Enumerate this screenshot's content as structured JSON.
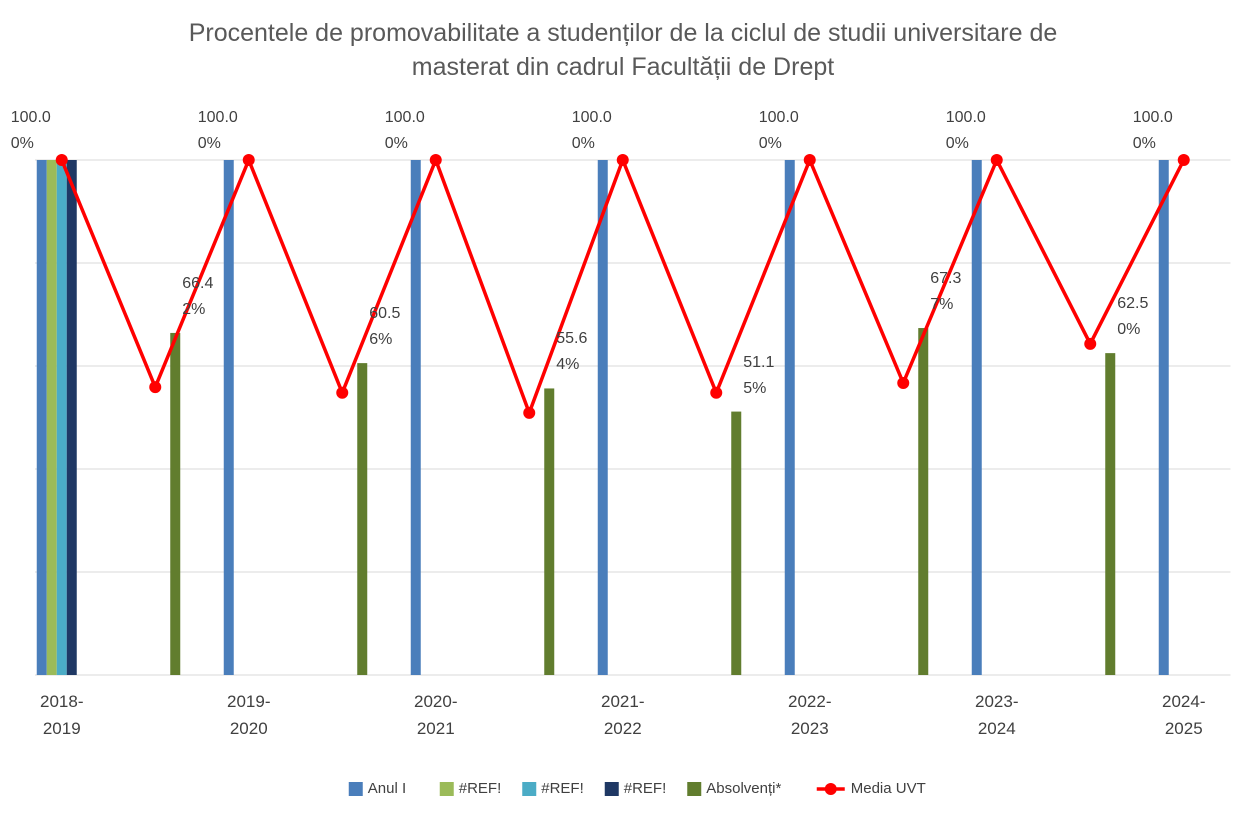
{
  "chart_data": {
    "type": "bar",
    "title": "Procentele de promovabilitate a studenților de la ciclul de studii universitare de masterat din cadrul Facultății de Drept",
    "categories": [
      "2018-2019",
      null,
      "2019-2020",
      null,
      "2020-2021",
      null,
      "2021-2022",
      null,
      "2022-2023",
      null,
      "2023-2024",
      null,
      "2024-2025"
    ],
    "series": [
      {
        "name": "Anul I",
        "color": "#4a7ebb",
        "type": "bar",
        "values": [
          100,
          null,
          100,
          null,
          100,
          null,
          100,
          null,
          100,
          null,
          100,
          null,
          100
        ],
        "value_labels": [
          "100.00%",
          null,
          "100.00%",
          null,
          "100.00%",
          null,
          "100.00%",
          null,
          "100.00%",
          null,
          "100.00%",
          null,
          "100.00%"
        ]
      },
      {
        "name": "#REF!",
        "color": "#9bbb59",
        "type": "bar",
        "values": [
          100,
          null,
          null,
          null,
          null,
          null,
          null,
          null,
          null,
          null,
          null,
          null,
          null
        ]
      },
      {
        "name": "#REF!",
        "color": "#4bacc6",
        "type": "bar",
        "values": [
          100,
          null,
          null,
          null,
          null,
          null,
          null,
          null,
          null,
          null,
          null,
          null,
          null
        ]
      },
      {
        "name": "#REF!",
        "color": "#1f3864",
        "type": "bar",
        "values": [
          100,
          null,
          null,
          null,
          null,
          null,
          null,
          null,
          null,
          null,
          null,
          null,
          null
        ]
      },
      {
        "name": "Absolvenți*",
        "color": "#617d2e",
        "type": "bar",
        "values": [
          null,
          66.42,
          null,
          60.56,
          null,
          55.64,
          null,
          51.15,
          null,
          67.37,
          null,
          62.5,
          null
        ],
        "value_labels": [
          null,
          "66.42%",
          null,
          "60.56%",
          null,
          "55.64%",
          null,
          "51.15%",
          null,
          "67.37%",
          null,
          "62.50%",
          null
        ]
      },
      {
        "name": "Media UVT",
        "color": "#ff0000",
        "type": "line",
        "values": [
          100,
          55.9,
          100,
          54.8,
          100,
          50.9,
          100,
          54.8,
          100,
          56.7,
          100,
          64.3,
          100
        ]
      }
    ],
    "ylim": [
      0,
      100
    ],
    "yticks": [
      0,
      20,
      40,
      60,
      80,
      100
    ],
    "grid": true,
    "legend": "bottom"
  }
}
